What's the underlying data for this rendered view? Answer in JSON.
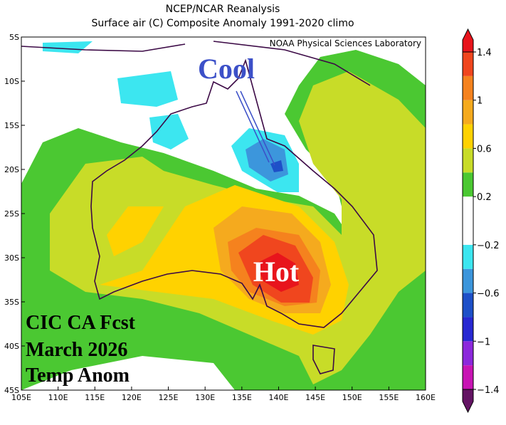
{
  "header": {
    "title": "NCEP/NCAR Reanalysis",
    "subtitle": "Surface air (C) Composite Anomaly 1991-2020 climo"
  },
  "map": {
    "credit": "NOAA Physical Sciences Laboratory",
    "annotations": {
      "cool": "Cool",
      "hot": "Hot",
      "forecast": [
        "CIC CA Fcst",
        "March 2026",
        "Temp Anom"
      ]
    },
    "lon_ticks": [
      {
        "value": 105,
        "label": "105E"
      },
      {
        "value": 110,
        "label": "110E"
      },
      {
        "value": 115,
        "label": "115E"
      },
      {
        "value": 120,
        "label": "120E"
      },
      {
        "value": 125,
        "label": "125E"
      },
      {
        "value": 130,
        "label": "130E"
      },
      {
        "value": 135,
        "label": "135E"
      },
      {
        "value": 140,
        "label": "140E"
      },
      {
        "value": 145,
        "label": "145E"
      },
      {
        "value": 150,
        "label": "150E"
      },
      {
        "value": 155,
        "label": "155E"
      },
      {
        "value": 160,
        "label": "160E"
      }
    ],
    "lat_ticks": [
      {
        "value": -5,
        "label": "5S"
      },
      {
        "value": -10,
        "label": "10S"
      },
      {
        "value": -15,
        "label": "15S"
      },
      {
        "value": -20,
        "label": "20S"
      },
      {
        "value": -25,
        "label": "25S"
      },
      {
        "value": -30,
        "label": "30S"
      },
      {
        "value": -35,
        "label": "35S"
      },
      {
        "value": -40,
        "label": "40S"
      },
      {
        "value": -45,
        "label": "45S"
      }
    ]
  },
  "colorbar": {
    "ticks": [
      {
        "value": -1.4,
        "label": "−1.4"
      },
      {
        "value": -1,
        "label": "−1"
      },
      {
        "value": -0.6,
        "label": "−0.6"
      },
      {
        "value": -0.2,
        "label": "−0.2"
      },
      {
        "value": 0.2,
        "label": "0.2"
      },
      {
        "value": 0.6,
        "label": "0.6"
      },
      {
        "value": 1,
        "label": "1"
      },
      {
        "value": 1.4,
        "label": "1.4"
      }
    ],
    "colors": [
      "#641464",
      "#c814b4",
      "#8c28dc",
      "#2828d2",
      "#1e50c8",
      "#3c96dc",
      "#3ce6f0",
      "#ffffff",
      "#ffffff",
      "#4bc832",
      "#c8dc28",
      "#ffd200",
      "#f5aa1e",
      "#f5821e",
      "#f0461e",
      "#e8141c"
    ]
  }
}
